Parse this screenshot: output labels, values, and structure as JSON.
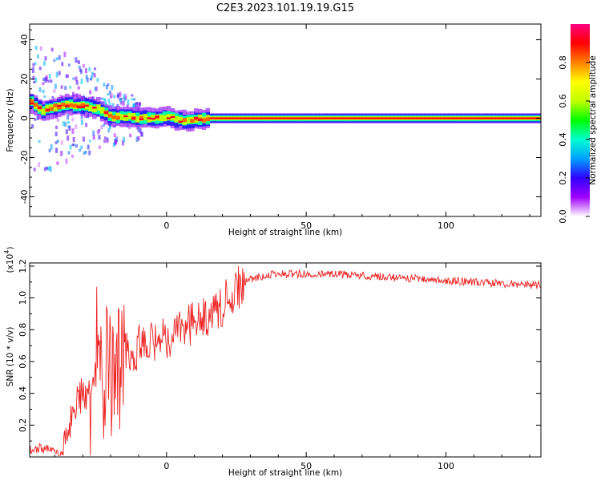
{
  "title": "C2E3.2023.101.19.19.G15",
  "chart_data": [
    {
      "type": "heatmap",
      "xlabel": "Height of straight line (km)",
      "ylabel": "Frequency (Hz)",
      "xlim": [
        -49,
        134
      ],
      "ylim": [
        -50,
        48
      ],
      "xticks": [
        0,
        50,
        100
      ],
      "yticks": [
        -40,
        -20,
        0,
        20,
        40
      ],
      "colorbar": {
        "label": "Normalized spectral amplitude",
        "range": [
          0,
          1
        ],
        "ticks": [
          0.0,
          0.2,
          0.4,
          0.6,
          0.8
        ],
        "colormap": [
          "#ffffff",
          "#a000ff",
          "#3000ff",
          "#00a0ff",
          "#00ffd0",
          "#00ff00",
          "#c0ff00",
          "#ffff00",
          "#ff8000",
          "#ff0000",
          "#ff0080"
        ]
      },
      "ridge": {
        "x": [
          -49,
          -45,
          -40,
          -35,
          -30,
          -25,
          -22,
          -20,
          -15,
          -10,
          -5,
          0,
          5,
          10,
          15,
          134
        ],
        "y": [
          8,
          4,
          6,
          7,
          6,
          5,
          2,
          0.5,
          1,
          0,
          0,
          0.5,
          -1.5,
          -0.5,
          0,
          0
        ]
      }
    },
    {
      "type": "line",
      "xlabel": "Height of straight line (km)",
      "ylabel": "SNR (10 * v/v)",
      "multiplier": "(x10",
      "multiplier_exp": "4",
      "multiplier_close": ")",
      "xlim": [
        -49,
        134
      ],
      "ylim": [
        0.0,
        1.22
      ],
      "xticks": [
        0,
        50,
        100
      ],
      "yticks": [
        0.2,
        0.4,
        0.6,
        0.8,
        1.0,
        1.2
      ],
      "series": [
        {
          "color": "#ee2222",
          "x": [
            -49,
            -45,
            -40,
            -37,
            -35,
            -33,
            -30,
            -27,
            -25,
            -23,
            -21,
            -19,
            -17,
            -15,
            -12,
            -10,
            -7,
            -5,
            -2,
            0,
            3,
            5,
            8,
            10,
            12,
            15,
            18,
            20,
            22,
            25,
            28,
            30,
            35,
            40,
            50,
            60,
            70,
            80,
            90,
            100,
            110,
            120,
            134
          ],
          "y": [
            0.04,
            0.06,
            0.03,
            0.02,
            0.15,
            0.35,
            0.38,
            0.45,
            0.52,
            0.5,
            0.55,
            0.6,
            0.6,
            0.65,
            0.62,
            0.72,
            0.7,
            0.74,
            0.72,
            0.75,
            0.78,
            0.8,
            0.82,
            0.85,
            0.88,
            0.9,
            0.92,
            0.96,
            1.0,
            1.05,
            1.1,
            1.12,
            1.14,
            1.15,
            1.15,
            1.15,
            1.14,
            1.13,
            1.12,
            1.11,
            1.1,
            1.09,
            1.08
          ]
        }
      ]
    }
  ]
}
